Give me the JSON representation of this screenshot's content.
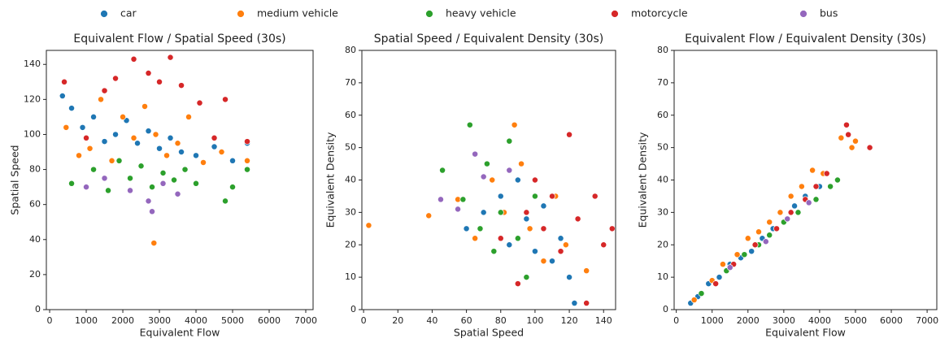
{
  "chart_data": [
    {
      "type": "scatter",
      "title": "Equivalent Flow / Spatial Speed (30s)",
      "xlabel": "Equivalent Flow",
      "ylabel": "Spatial Speed",
      "xlim": [
        -90,
        7200
      ],
      "ylim": [
        0,
        148
      ],
      "xticks": [
        0,
        1000,
        2000,
        3000,
        4000,
        5000,
        6000,
        7000
      ],
      "yticks": [
        0,
        20,
        40,
        60,
        80,
        100,
        120,
        140
      ],
      "series": [
        {
          "name": "car",
          "color": "#1f77b4",
          "x": [
            350,
            600,
            900,
            1200,
            1500,
            1800,
            2100,
            2400,
            2700,
            3000,
            3300,
            3600,
            4000,
            4500,
            5000,
            5400
          ],
          "y": [
            122,
            115,
            104,
            110,
            96,
            100,
            108,
            95,
            102,
            92,
            98,
            90,
            88,
            93,
            85,
            95
          ]
        },
        {
          "name": "medium vehicle",
          "color": "#ff7f0e",
          "x": [
            450,
            800,
            1100,
            1400,
            1700,
            2000,
            2300,
            2600,
            2900,
            3200,
            3500,
            3800,
            4200,
            4700,
            5400,
            2850
          ],
          "y": [
            104,
            88,
            92,
            120,
            85,
            110,
            98,
            116,
            100,
            88,
            95,
            110,
            84,
            90,
            85,
            38
          ]
        },
        {
          "name": "heavy vehicle",
          "color": "#2ca02c",
          "x": [
            600,
            1200,
            1600,
            1900,
            2200,
            2500,
            2800,
            3100,
            3400,
            3700,
            4000,
            4800,
            5400,
            5000
          ],
          "y": [
            72,
            80,
            68,
            85,
            75,
            82,
            70,
            78,
            74,
            80,
            72,
            62,
            80,
            70
          ]
        },
        {
          "name": "motorcycle",
          "color": "#d62728",
          "x": [
            400,
            1000,
            1500,
            1800,
            2300,
            2700,
            3000,
            3300,
            3600,
            4100,
            4500,
            4800,
            5400
          ],
          "y": [
            130,
            98,
            125,
            132,
            143,
            135,
            130,
            144,
            128,
            118,
            98,
            120,
            96
          ]
        },
        {
          "name": "bus",
          "color": "#9467bd",
          "x": [
            1000,
            1500,
            2200,
            2700,
            2800,
            3100,
            3500
          ],
          "y": [
            70,
            75,
            68,
            62,
            56,
            72,
            66
          ]
        }
      ]
    },
    {
      "type": "scatter",
      "title": "Spatial Speed / Equivalent Density (30s)",
      "xlabel": "Spatial Speed",
      "ylabel": "Equivalent Density",
      "xlim": [
        -1,
        147
      ],
      "ylim": [
        0,
        80
      ],
      "xticks": [
        0,
        20,
        40,
        60,
        80,
        100,
        120,
        140
      ],
      "yticks": [
        0,
        10,
        20,
        30,
        40,
        50,
        60,
        70,
        80
      ],
      "series": [
        {
          "color": "#1f77b4",
          "x": [
            60,
            70,
            80,
            85,
            90,
            95,
            100,
            105,
            110,
            115,
            120,
            123
          ],
          "y": [
            25,
            30,
            35,
            20,
            40,
            28,
            18,
            32,
            15,
            22,
            10,
            2
          ]
        },
        {
          "color": "#ff7f0e",
          "x": [
            3,
            38,
            55,
            65,
            75,
            82,
            88,
            92,
            97,
            105,
            112,
            118,
            130
          ],
          "y": [
            26,
            29,
            34,
            22,
            40,
            30,
            57,
            45,
            25,
            15,
            35,
            20,
            12
          ]
        },
        {
          "color": "#2ca02c",
          "x": [
            46,
            58,
            62,
            68,
            72,
            76,
            80,
            85,
            90,
            95,
            100
          ],
          "y": [
            43,
            34,
            57,
            25,
            45,
            18,
            30,
            52,
            22,
            10,
            35
          ]
        },
        {
          "color": "#d62728",
          "x": [
            80,
            90,
            95,
            100,
            105,
            110,
            115,
            120,
            125,
            130,
            135,
            140,
            145
          ],
          "y": [
            22,
            8,
            30,
            40,
            25,
            35,
            18,
            54,
            28,
            2,
            35,
            20,
            25
          ]
        },
        {
          "color": "#9467bd",
          "x": [
            45,
            55,
            65,
            70,
            85
          ],
          "y": [
            34,
            31,
            48,
            41,
            43
          ]
        }
      ]
    },
    {
      "type": "scatter",
      "title": "Equivalent Flow / Equivalent Density (30s)",
      "xlabel": "Equivalent Flow",
      "ylabel": "Equivalent Density",
      "xlim": [
        -60,
        7270
      ],
      "ylim": [
        0,
        80
      ],
      "xticks": [
        0,
        1000,
        2000,
        3000,
        4000,
        5000,
        6000,
        7000
      ],
      "yticks": [
        0,
        10,
        20,
        30,
        40,
        50,
        60,
        70,
        80
      ],
      "series": [
        {
          "color": "#1f77b4",
          "x": [
            400,
            600,
            900,
            1200,
            1500,
            1800,
            2100,
            2400,
            2700,
            3000,
            3300,
            3600,
            4000
          ],
          "y": [
            2,
            4,
            8,
            10,
            14,
            16,
            18,
            22,
            25,
            27,
            32,
            35,
            38
          ]
        },
        {
          "color": "#ff7f0e",
          "x": [
            500,
            1000,
            1300,
            1700,
            2000,
            2300,
            2600,
            2900,
            3200,
            3500,
            3800,
            4100,
            4600,
            4900,
            5000
          ],
          "y": [
            3,
            9,
            14,
            17,
            22,
            24,
            27,
            30,
            35,
            38,
            43,
            42,
            53,
            50,
            52
          ]
        },
        {
          "color": "#2ca02c",
          "x": [
            700,
            1400,
            1900,
            2300,
            2600,
            3000,
            3400,
            3900,
            4300,
            4500
          ],
          "y": [
            5,
            12,
            17,
            20,
            23,
            27,
            30,
            34,
            38,
            40
          ]
        },
        {
          "color": "#d62728",
          "x": [
            1100,
            1600,
            2200,
            2800,
            3200,
            3600,
            3900,
            4200,
            4750,
            4800,
            5400
          ],
          "y": [
            8,
            14,
            20,
            25,
            30,
            34,
            38,
            42,
            57,
            54,
            50
          ]
        },
        {
          "color": "#9467bd",
          "x": [
            1500,
            2500,
            3100,
            3700
          ],
          "y": [
            13,
            21,
            28,
            33
          ]
        }
      ]
    }
  ]
}
